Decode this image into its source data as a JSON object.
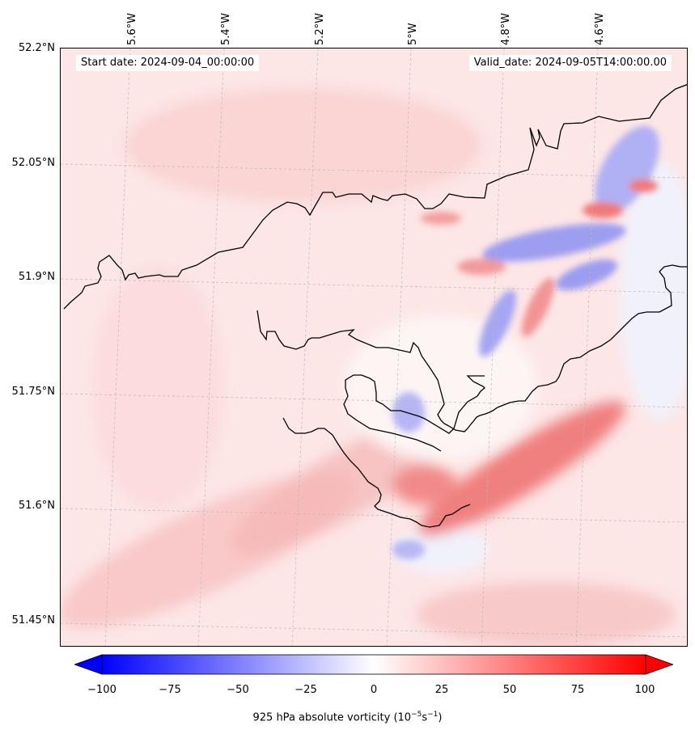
{
  "map": {
    "start_date": "Start date: 2024-09-04_00:00:00",
    "valid_date": "Valid_date: 2024-09-05T14:00:00.00",
    "lon_labels": [
      "5.6°W",
      "5.4°W",
      "5.2°W",
      "5°W",
      "4.8°W",
      "4.6°W"
    ],
    "lat_labels": [
      "52.2°N",
      "52.05°N",
      "51.9°N",
      "51.75°N",
      "51.6°N",
      "51.45°N"
    ],
    "colors": {
      "neg": "#0000ff",
      "pos": "#ff0000",
      "coast": "#000000"
    }
  },
  "colorbar": {
    "ticks": [
      "−100",
      "−75",
      "−50",
      "−25",
      "0",
      "25",
      "50",
      "75",
      "100"
    ],
    "label": "925 hPa absolute vorticity (10",
    "label_exp1": "−5",
    "label_mid": "s",
    "label_exp2": "−1",
    "label_end": ")"
  }
}
